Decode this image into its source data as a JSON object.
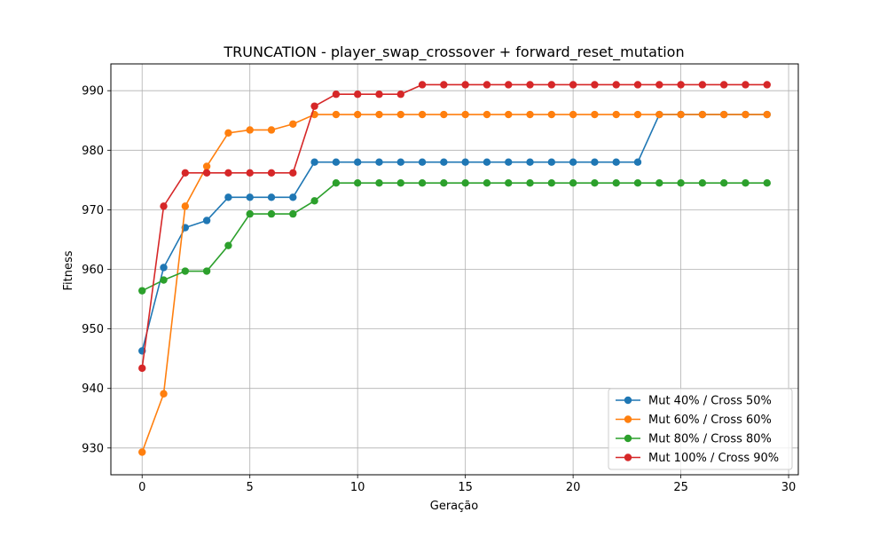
{
  "chart_data": {
    "type": "line",
    "title": "TRUNCATION - player_swap_crossover + forward_reset_mutation",
    "xlabel": "Geração",
    "ylabel": "Fitness",
    "xlim": [
      -1.45,
      30.45
    ],
    "ylim": [
      925.5,
      994.5
    ],
    "xticks": [
      0,
      5,
      10,
      15,
      20,
      25,
      30
    ],
    "xtick_labels": [
      "0",
      "5",
      "10",
      "15",
      "20",
      "25",
      "30"
    ],
    "yticks": [
      930,
      940,
      950,
      960,
      970,
      980,
      990
    ],
    "ytick_labels": [
      "930",
      "940",
      "950",
      "960",
      "970",
      "980",
      "990"
    ],
    "grid": true,
    "legend_position": "lower-right",
    "x": [
      0,
      1,
      2,
      3,
      4,
      5,
      6,
      7,
      8,
      9,
      10,
      11,
      12,
      13,
      14,
      15,
      16,
      17,
      18,
      19,
      20,
      21,
      22,
      23,
      24,
      25,
      26,
      27,
      28,
      29
    ],
    "series": [
      {
        "name": "Mut 40% / Cross 50%",
        "color": "#1f77b4",
        "values": [
          946.3,
          960.3,
          967.0,
          968.2,
          972.1,
          972.1,
          972.1,
          972.1,
          978.0,
          978.0,
          978.0,
          978.0,
          978.0,
          978.0,
          978.0,
          978.0,
          978.0,
          978.0,
          978.0,
          978.0,
          978.0,
          978.0,
          978.0,
          978.0,
          986.0,
          986.0,
          986.0,
          986.0,
          986.0,
          986.0
        ]
      },
      {
        "name": "Mut 60% / Cross 60%",
        "color": "#ff7f0e",
        "values": [
          929.3,
          939.1,
          970.6,
          977.3,
          982.9,
          983.4,
          983.4,
          984.4,
          986.0,
          986.0,
          986.0,
          986.0,
          986.0,
          986.0,
          986.0,
          986.0,
          986.0,
          986.0,
          986.0,
          986.0,
          986.0,
          986.0,
          986.0,
          986.0,
          986.0,
          986.0,
          986.0,
          986.0,
          986.0,
          986.0
        ]
      },
      {
        "name": "Mut 80% / Cross 80%",
        "color": "#2ca02c",
        "values": [
          956.4,
          958.2,
          959.7,
          959.7,
          964.0,
          969.3,
          969.3,
          969.3,
          971.5,
          974.5,
          974.5,
          974.5,
          974.5,
          974.5,
          974.5,
          974.5,
          974.5,
          974.5,
          974.5,
          974.5,
          974.5,
          974.5,
          974.5,
          974.5,
          974.5,
          974.5,
          974.5,
          974.5,
          974.5,
          974.5
        ]
      },
      {
        "name": "Mut 100% / Cross 90%",
        "color": "#d62728",
        "values": [
          943.4,
          970.6,
          976.2,
          976.2,
          976.2,
          976.2,
          976.2,
          976.2,
          987.4,
          989.4,
          989.4,
          989.4,
          989.4,
          991.0,
          991.0,
          991.0,
          991.0,
          991.0,
          991.0,
          991.0,
          991.0,
          991.0,
          991.0,
          991.0,
          991.0,
          991.0,
          991.0,
          991.0,
          991.0,
          991.0
        ]
      }
    ]
  }
}
